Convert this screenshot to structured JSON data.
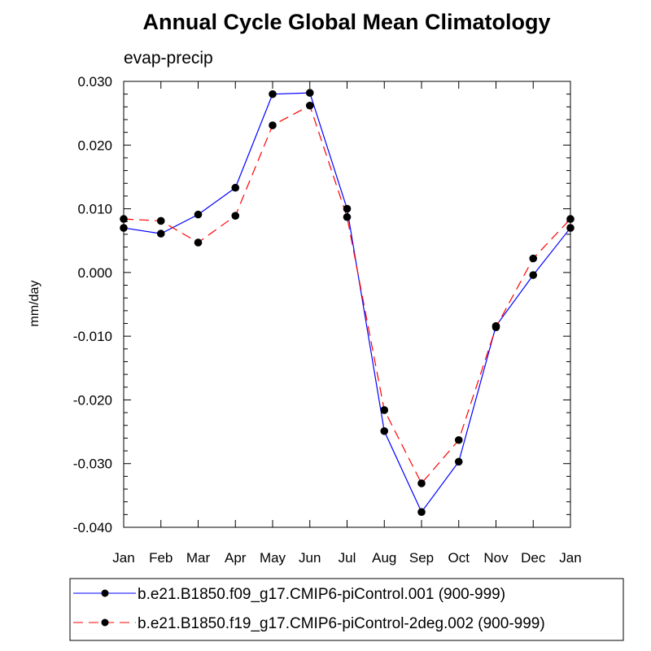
{
  "chart_data": {
    "type": "line",
    "title": "Annual Cycle Global Mean Climatology",
    "subtitle": "evap-precip",
    "xlabel": "",
    "ylabel": "mm/day",
    "categories": [
      "Jan",
      "Feb",
      "Mar",
      "Apr",
      "May",
      "Jun",
      "Jul",
      "Aug",
      "Sep",
      "Oct",
      "Nov",
      "Dec",
      "Jan"
    ],
    "ylim": [
      -0.04,
      0.03
    ],
    "yticks": [
      "0.030",
      "0.020",
      "0.010",
      "0.000",
      "-0.010",
      "-0.020",
      "-0.030",
      "-0.040"
    ],
    "ytick_values": [
      0.03,
      0.02,
      0.01,
      0.0,
      -0.01,
      -0.02,
      -0.03,
      -0.04
    ],
    "grid": false,
    "legend_position": "bottom",
    "series": [
      {
        "name": "b.e21.B1850.f09_g17.CMIP6-piControl.001 (900-999)",
        "color": "#0000ff",
        "line_style": "solid",
        "marker": "filled-circle",
        "values": [
          0.007,
          0.0061,
          0.0091,
          0.0133,
          0.028,
          0.0282,
          0.01,
          -0.0249,
          -0.0376,
          -0.0297,
          -0.0084,
          -0.0004,
          0.007
        ]
      },
      {
        "name": "b.e21.B1850.f19_g17.CMIP6-piControl-2deg.002 (900-999)",
        "color": "#ff0000",
        "line_style": "dashed",
        "marker": "filled-circle",
        "values": [
          0.0084,
          0.0081,
          0.0047,
          0.0089,
          0.0231,
          0.0262,
          0.0087,
          -0.0216,
          -0.0331,
          -0.0263,
          -0.0086,
          0.0022,
          0.0084
        ]
      }
    ]
  }
}
